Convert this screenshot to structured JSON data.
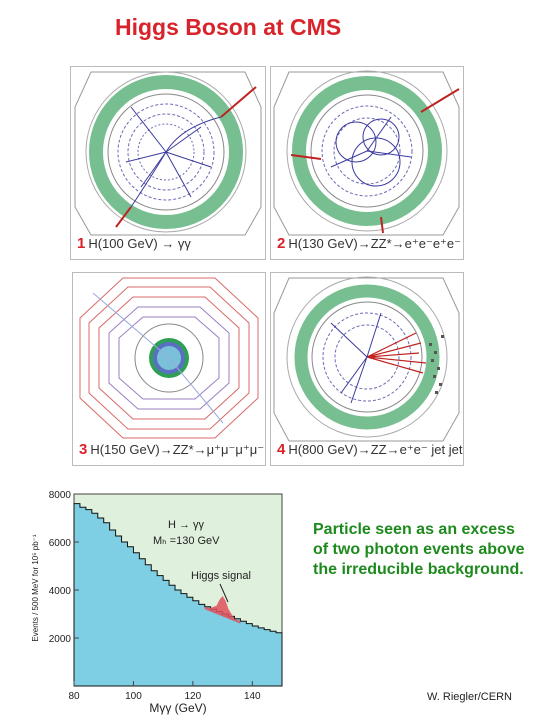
{
  "title": "Higgs Boson at CMS",
  "panels": [
    {
      "number": "1",
      "caption": "H(100 GeV) → γγ"
    },
    {
      "number": "2",
      "caption": "H(130 GeV)→ZZ*→e⁺e⁻e⁺e⁻"
    },
    {
      "number": "3",
      "caption": "H(150 GeV)→ZZ*→μ⁺μ⁻μ⁺μ⁻"
    },
    {
      "number": "4",
      "caption": "H(800 GeV)→ZZ→e⁺e⁻ jet jet"
    }
  ],
  "description": "Particle seen as an excess of two photon events above the irreducible background.",
  "credit": "W. Riegler/CERN",
  "colors": {
    "title": "#d8232a",
    "description": "#1e8a1e",
    "background_fill": "#7ecfe3",
    "plot_bg": "#dff0dc",
    "signal": "#e0505a"
  },
  "chart_data": {
    "type": "area",
    "legend": {
      "process": "H → γγ",
      "mass": "Mₕ =130 GeV",
      "signal_label": "Higgs  signal"
    },
    "xlabel": "Mγγ  (GeV)",
    "ylabel": "Events / 500 MeV  for 10⁵ pb⁻¹",
    "xlim": [
      80,
      150
    ],
    "ylim": [
      0,
      8000
    ],
    "xticks": [
      "80",
      "100",
      "120",
      "140"
    ],
    "yticks": [
      "2000",
      "4000",
      "6000",
      "8000"
    ],
    "series": [
      {
        "x": [
          80,
          82,
          84,
          86,
          88,
          90,
          92,
          94,
          96,
          98,
          100,
          102,
          104,
          106,
          108,
          110,
          112,
          114,
          116,
          118,
          120,
          122,
          124,
          126,
          128,
          130,
          132,
          134,
          136,
          138,
          140,
          142,
          144,
          146,
          148,
          150
        ],
        "values": [
          7600,
          7450,
          7350,
          7200,
          7000,
          6800,
          6500,
          6250,
          6000,
          5800,
          5550,
          5300,
          5050,
          4800,
          4600,
          4400,
          4200,
          4000,
          3850,
          3700,
          3550,
          3400,
          3300,
          3200,
          3100,
          3000,
          2900,
          2800,
          2700,
          2600,
          2500,
          2420,
          2350,
          2280,
          2220,
          2180
        ]
      }
    ],
    "signal": {
      "x": [
        124,
        126,
        128,
        129,
        130,
        131,
        132,
        134,
        136
      ],
      "values": [
        3300,
        3250,
        3350,
        3600,
        3750,
        3550,
        3200,
        2800,
        2700
      ]
    }
  }
}
